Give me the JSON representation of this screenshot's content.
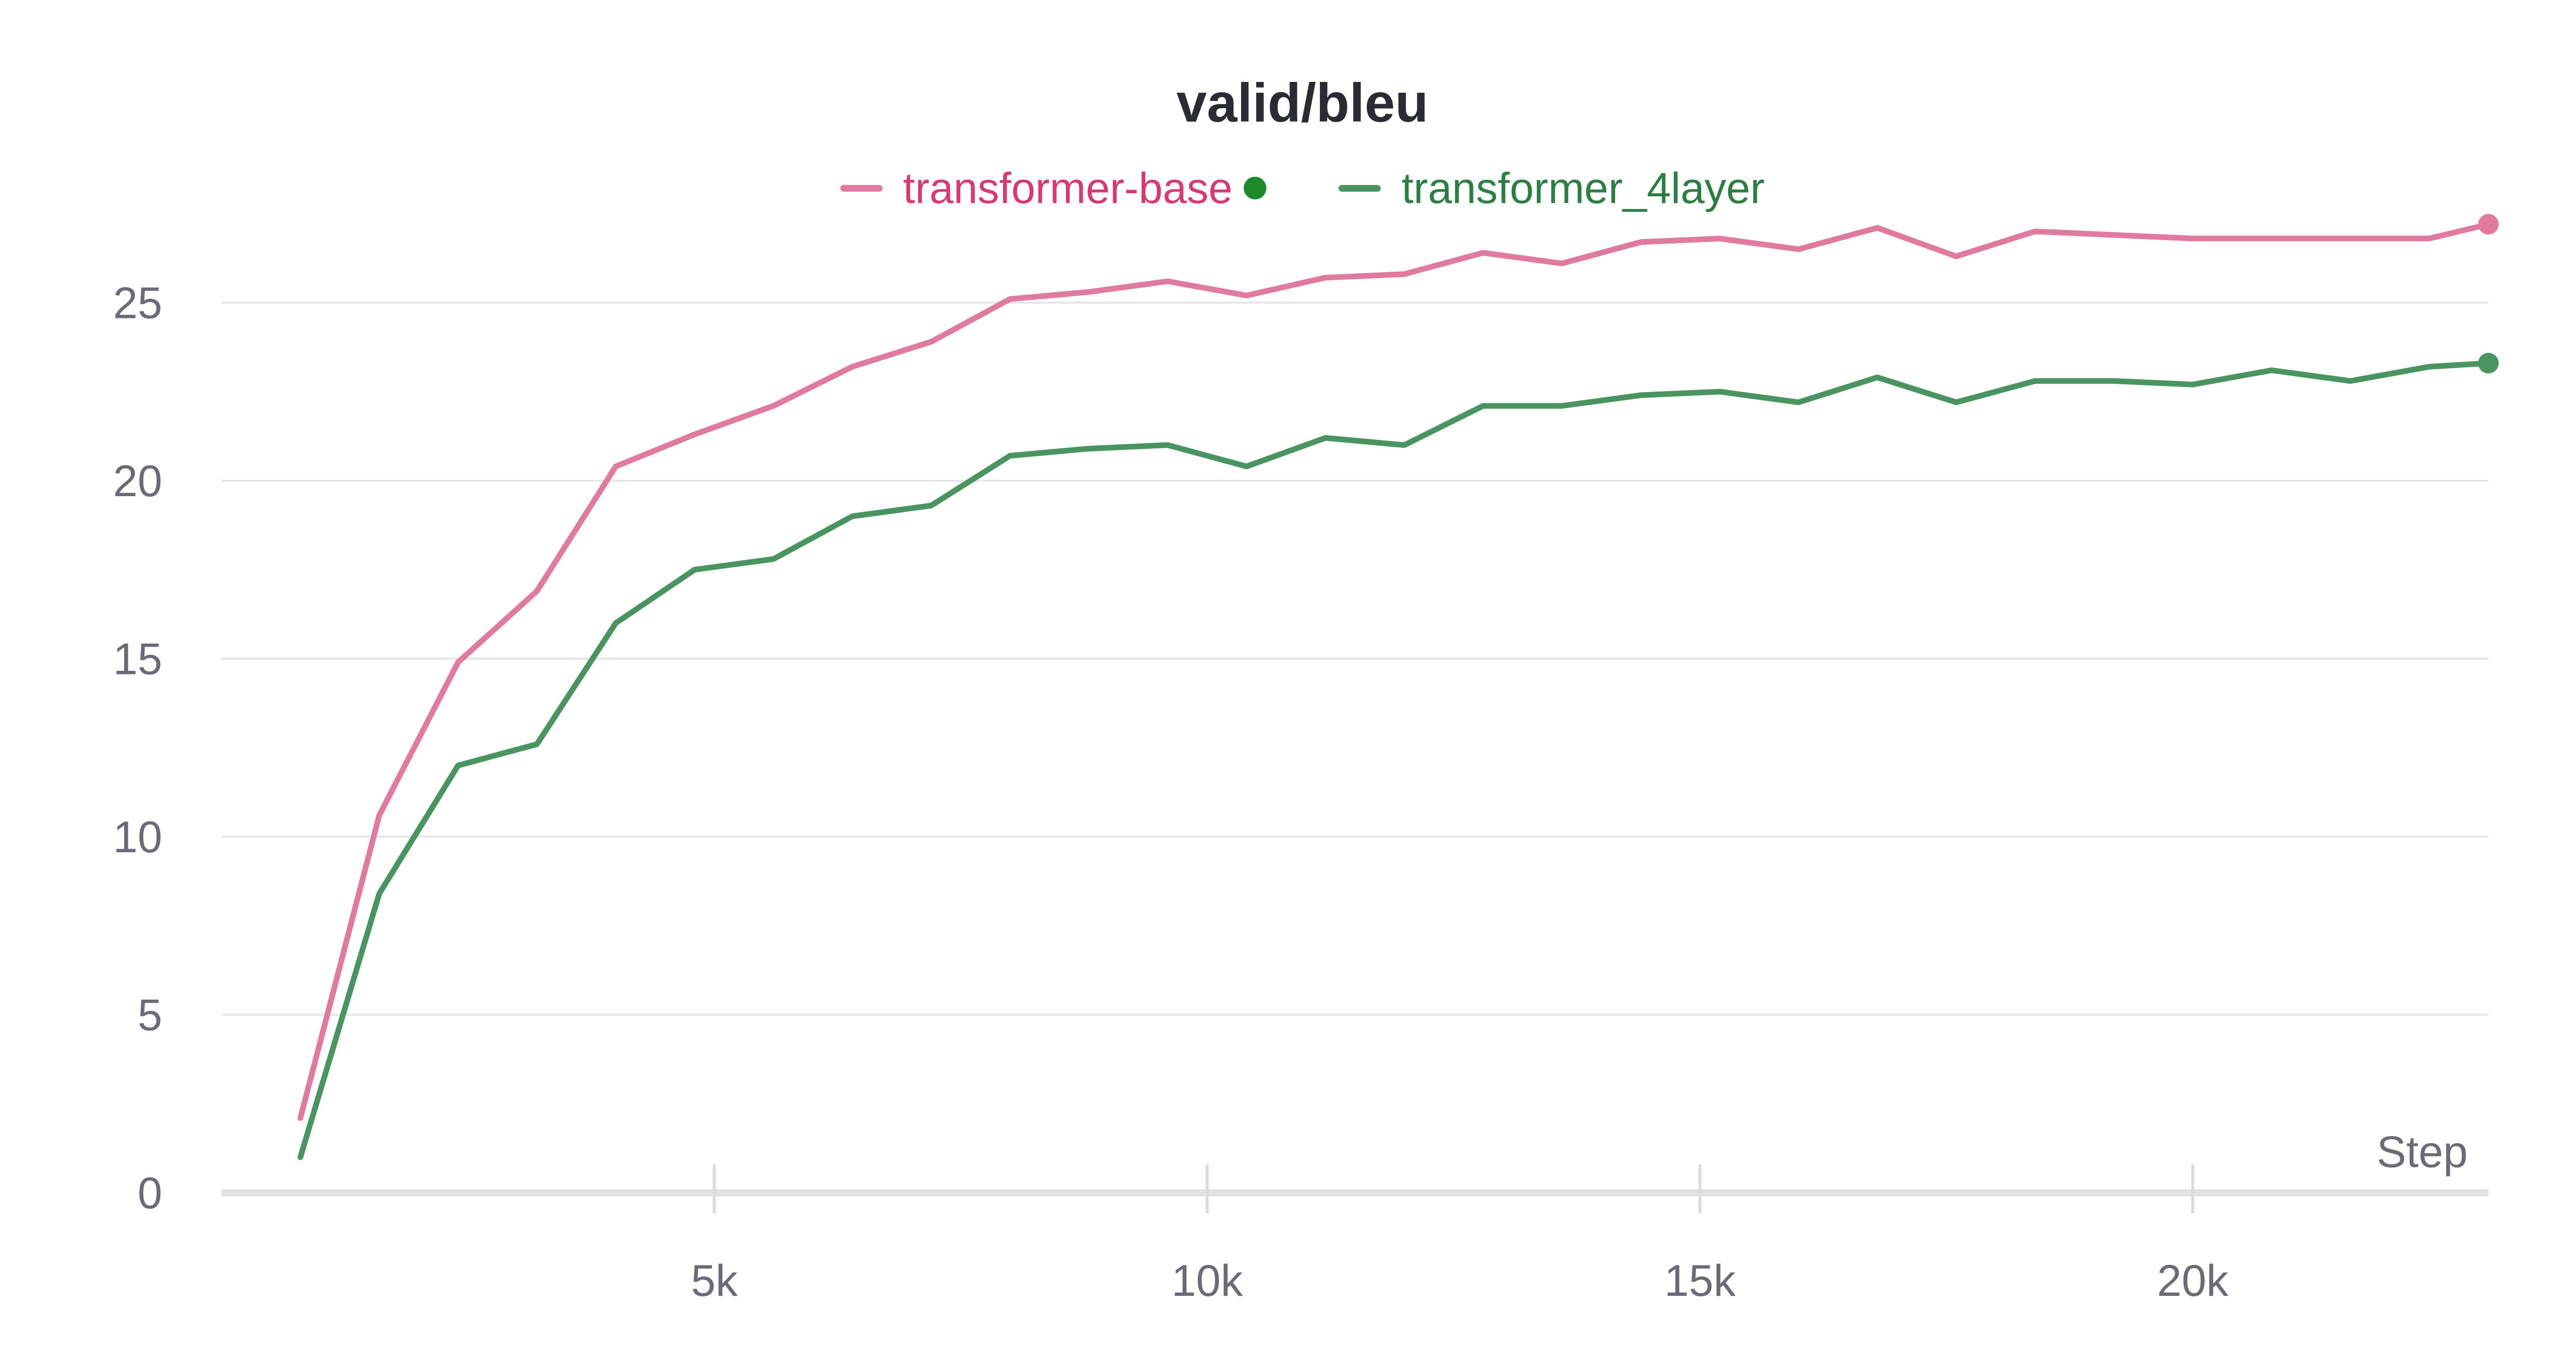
{
  "chart_data": {
    "type": "line",
    "title": "valid/bleu",
    "xlabel": "Step",
    "ylabel": "",
    "xlim": [
      0,
      23000
    ],
    "ylim": [
      0,
      28
    ],
    "yticks": [
      0,
      5,
      10,
      15,
      20,
      25
    ],
    "xticks": [
      5000,
      10000,
      15000,
      20000
    ],
    "xtick_labels": [
      "5k",
      "10k",
      "15k",
      "20k"
    ],
    "grid": true,
    "legend_position": "top-center",
    "x": [
      800,
      1600,
      2400,
      3200,
      4000,
      4800,
      5600,
      6400,
      7200,
      8000,
      8800,
      9600,
      10400,
      11200,
      12000,
      12800,
      13600,
      14400,
      15200,
      16000,
      16800,
      17600,
      18400,
      19200,
      20000,
      20800,
      21600,
      22400,
      23000
    ],
    "series": [
      {
        "name": "transformer-base",
        "color": "#e07b9f",
        "label_color": "#d63a6f",
        "values": [
          2.1,
          10.6,
          14.9,
          16.9,
          20.4,
          21.3,
          22.1,
          23.2,
          23.9,
          25.1,
          25.3,
          25.6,
          25.2,
          25.7,
          25.8,
          26.4,
          26.1,
          26.7,
          26.8,
          26.5,
          27.1,
          26.3,
          27.0,
          26.9,
          26.8,
          26.8,
          26.8,
          26.8,
          27.2
        ]
      },
      {
        "name": "transformer_4layer",
        "color": "#4a9461",
        "label_color": "#2e7d45",
        "values": [
          1.0,
          8.4,
          12.0,
          12.6,
          16.0,
          17.5,
          17.8,
          19.0,
          19.3,
          20.7,
          20.9,
          21.0,
          20.4,
          21.2,
          21.0,
          22.1,
          22.1,
          22.4,
          22.5,
          22.2,
          22.9,
          22.2,
          22.8,
          22.8,
          22.7,
          23.1,
          22.8,
          23.2,
          23.3
        ]
      }
    ]
  }
}
